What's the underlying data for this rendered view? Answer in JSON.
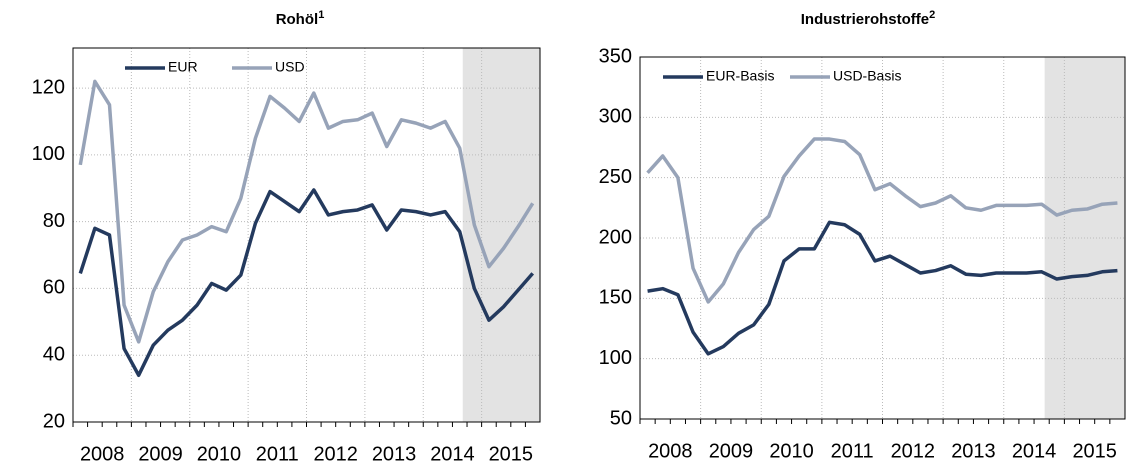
{
  "chart_data": [
    {
      "type": "line",
      "title": "Rohöl",
      "title_note": "1",
      "categories": [
        "2008",
        null,
        null,
        null,
        "2009",
        null,
        null,
        null,
        "2010",
        null,
        null,
        null,
        "2011",
        null,
        null,
        null,
        "2012",
        null,
        null,
        null,
        "2013",
        null,
        null,
        null,
        "2014",
        null,
        null,
        null,
        "2015",
        null,
        null,
        null
      ],
      "series": [
        {
          "name": "EUR",
          "color": "#243a5e",
          "values": [
            64.5,
            78,
            76,
            42,
            34,
            43,
            47.5,
            50.5,
            55,
            61.5,
            59.5,
            64,
            79.5,
            89,
            86,
            83,
            89.5,
            82,
            83,
            83.5,
            85,
            77.5,
            83.5,
            83,
            82,
            83,
            77,
            60,
            50.5,
            54.5,
            59.5,
            64.5
          ]
        },
        {
          "name": "USD",
          "color": "#97a3b8",
          "values": [
            97,
            122,
            115,
            55,
            44,
            59,
            68,
            74.5,
            76,
            78.5,
            77,
            87,
            105,
            117.5,
            114,
            110,
            118.5,
            108,
            110,
            110.5,
            112.5,
            102.5,
            110.5,
            109.5,
            108,
            110,
            102,
            79,
            66.5,
            72,
            78.5,
            85.5
          ]
        }
      ],
      "ylim": [
        20,
        132
      ],
      "yticks": [
        20,
        40,
        60,
        80,
        100,
        120
      ],
      "grid": true
    },
    {
      "type": "line",
      "title": "Industrierohstoffe",
      "title_note": "2",
      "categories": [
        "2008",
        null,
        null,
        null,
        "2009",
        null,
        null,
        null,
        "2010",
        null,
        null,
        null,
        "2011",
        null,
        null,
        null,
        "2012",
        null,
        null,
        null,
        "2013",
        null,
        null,
        null,
        "2014",
        null,
        null,
        null,
        "2015",
        null,
        null,
        null
      ],
      "series": [
        {
          "name": "EUR-Basis",
          "color": "#243a5e",
          "values": [
            156,
            158,
            153,
            122,
            104,
            110,
            121,
            128,
            145,
            181,
            191,
            191,
            213,
            211,
            203,
            181,
            185,
            178,
            171,
            173,
            177,
            170,
            169,
            171,
            171,
            171,
            172,
            166,
            168,
            169,
            172,
            173
          ]
        },
        {
          "name": "USD-Basis",
          "color": "#97a3b8",
          "values": [
            254,
            268,
            250,
            175,
            147,
            162,
            188,
            207,
            218,
            251,
            268,
            282,
            282,
            280,
            269,
            240,
            245,
            235,
            226,
            229,
            235,
            225,
            223,
            227,
            227,
            227,
            228,
            219,
            223,
            224,
            228,
            229
          ]
        }
      ],
      "ylim": [
        50,
        350
      ],
      "yticks": [
        50,
        100,
        150,
        200,
        250,
        300,
        350
      ],
      "grid": true
    }
  ]
}
